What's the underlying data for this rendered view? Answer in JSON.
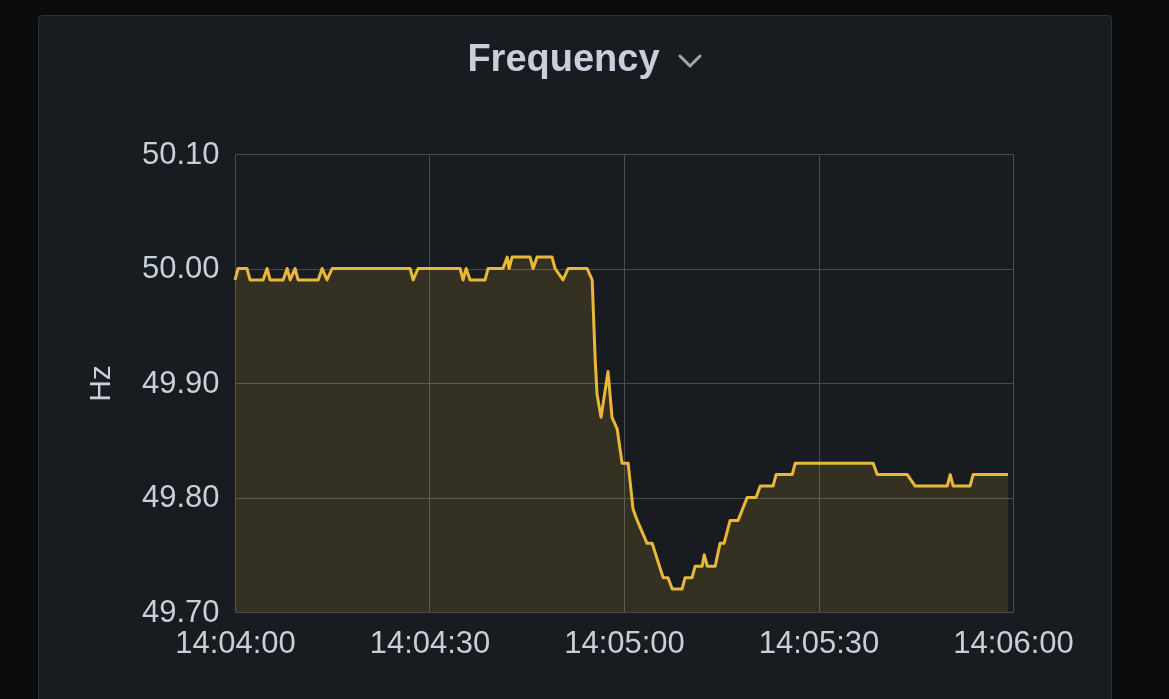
{
  "chart_data": {
    "type": "area",
    "title": "Frequency",
    "ylabel": "Hz",
    "grid": true,
    "xlim": [
      14.066667,
      14.1
    ],
    "xticks": [
      {
        "value": 14.066667,
        "label": "14:04:00"
      },
      {
        "value": 14.075,
        "label": "14:04:30"
      },
      {
        "value": 14.083333,
        "label": "14:05:00"
      },
      {
        "value": 14.091667,
        "label": "14:05:30"
      },
      {
        "value": 14.1,
        "label": "14:06:00"
      }
    ],
    "ylim": [
      49.7,
      50.1
    ],
    "yticks": [
      {
        "value": 49.7,
        "label": "49.70"
      },
      {
        "value": 49.8,
        "label": "49.80"
      },
      {
        "value": 49.9,
        "label": "49.90"
      },
      {
        "value": 50.0,
        "label": "50.00"
      },
      {
        "value": 50.1,
        "label": "50.10"
      }
    ],
    "series": [
      {
        "color": "#eab839",
        "x": [
          14.06667,
          14.0668,
          14.06718,
          14.06731,
          14.06787,
          14.06804,
          14.06817,
          14.06873,
          14.0689,
          14.06903,
          14.06924,
          14.06937,
          14.07023,
          14.0704,
          14.07061,
          14.07083,
          14.07417,
          14.0743,
          14.07451,
          14.07631,
          14.07644,
          14.07657,
          14.07674,
          14.07738,
          14.07751,
          14.07815,
          14.07833,
          14.07841,
          14.07854,
          14.07931,
          14.07944,
          14.07961,
          14.08025,
          14.08038,
          14.08072,
          14.08094,
          14.08175,
          14.08197,
          14.0821,
          14.08218,
          14.08235,
          14.08265,
          14.08282,
          14.08304,
          14.08325,
          14.08351,
          14.08372,
          14.0839,
          14.08411,
          14.08432,
          14.08454,
          14.08501,
          14.08522,
          14.0854,
          14.08582,
          14.08595,
          14.08625,
          14.08638,
          14.08668,
          14.08677,
          14.0869,
          14.08724,
          14.08745,
          14.08762,
          14.08788,
          14.08822,
          14.08861,
          14.08899,
          14.08917,
          14.08972,
          14.08985,
          14.09054,
          14.09067,
          14.09401,
          14.09418,
          14.09547,
          14.09581,
          14.09718,
          14.09731,
          14.09744,
          14.09816,
          14.09829,
          14.09979
        ],
        "values": [
          49.99,
          50.0,
          50.0,
          49.99,
          49.99,
          50.0,
          49.99,
          49.99,
          50.0,
          49.99,
          50.0,
          49.99,
          49.99,
          50.0,
          49.99,
          50.0,
          50.0,
          49.99,
          50.0,
          50.0,
          49.99,
          50.0,
          49.99,
          49.99,
          50.0,
          50.0,
          50.01,
          50.0,
          50.01,
          50.01,
          50.0,
          50.01,
          50.01,
          50.0,
          49.99,
          50.0,
          50.0,
          49.99,
          49.92,
          49.89,
          49.87,
          49.91,
          49.87,
          49.86,
          49.83,
          49.83,
          49.79,
          49.78,
          49.77,
          49.76,
          49.76,
          49.73,
          49.73,
          49.72,
          49.72,
          49.73,
          49.73,
          49.74,
          49.74,
          49.75,
          49.74,
          49.74,
          49.76,
          49.76,
          49.78,
          49.78,
          49.8,
          49.8,
          49.81,
          49.81,
          49.82,
          49.82,
          49.83,
          49.83,
          49.82,
          49.82,
          49.81,
          49.81,
          49.82,
          49.81,
          49.81,
          49.82,
          49.82
        ]
      }
    ]
  }
}
